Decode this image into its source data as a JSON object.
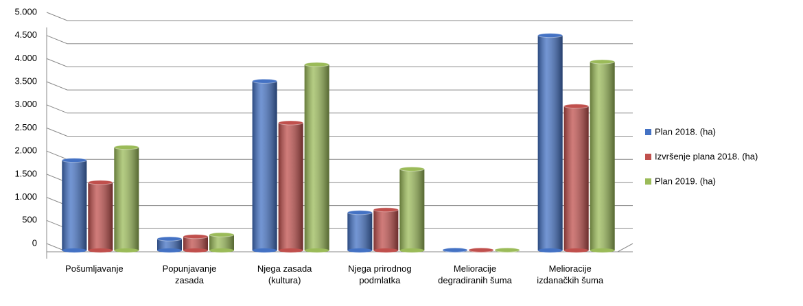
{
  "chart_data": {
    "type": "bar",
    "categories": [
      "Pošumljavanje",
      "Popunjavanje zasada",
      "Njega zasada (kultura)",
      "Njega prirodnog podmlatka",
      "Melioracije degradiranih šuma",
      "Melioracije izdanačkih šuma"
    ],
    "series": [
      {
        "name": "Plan 2018. (ha)",
        "color": "#4472c4",
        "values": [
          1950,
          250,
          3660,
          820,
          10,
          4650
        ]
      },
      {
        "name": "Izvršenje plana 2018. (ha)",
        "color": "#c0504d",
        "values": [
          1470,
          300,
          2760,
          880,
          10,
          3120
        ]
      },
      {
        "name": "Plan 2019. (ha)",
        "color": "#9bbb59",
        "values": [
          2230,
          340,
          4020,
          1760,
          10,
          4080
        ]
      }
    ],
    "ylim": [
      0,
      5000
    ],
    "yticks": [
      0,
      500,
      {
        "value": 1000,
        "label": "1.000"
      },
      {
        "value": 1500,
        "label": "1.500"
      },
      {
        "value": 2000,
        "label": "2.000"
      },
      {
        "value": 2500,
        "label": "2.500"
      },
      {
        "value": 3000,
        "label": "3.000"
      },
      {
        "value": 3500,
        "label": "3.500"
      },
      {
        "value": 4000,
        "label": "4.000"
      },
      {
        "value": 4500,
        "label": "4.500"
      },
      {
        "value": 5000,
        "label": "5.000"
      }
    ],
    "grid": true,
    "legend": "right"
  }
}
